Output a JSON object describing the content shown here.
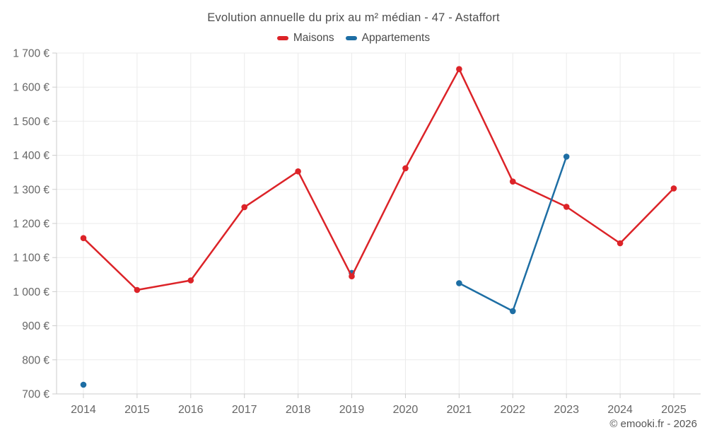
{
  "header": {
    "title": "Evolution annuelle du prix au m² médian - 47 - Astaffort"
  },
  "legend": {
    "items": [
      {
        "label": "Maisons",
        "color": "#dc2328"
      },
      {
        "label": "Appartements",
        "color": "#1d6ea4"
      }
    ]
  },
  "footer": {
    "copyright": "© emooki.fr - 2026"
  },
  "colors": {
    "maisons": "#dc2328",
    "appartements": "#1d6ea4",
    "grid": "#ebebeb",
    "axis": "#cccccc",
    "tick": "#cccccc",
    "axis_label": "#666666",
    "title_text": "#4d4d4d",
    "legend_text": "#4a4a4a",
    "copyright_text": "#555555",
    "background": "#ffffff"
  },
  "chart_data": {
    "type": "line",
    "title": "Evolution annuelle du prix au m² médian - 47 - Astaffort",
    "categories": [
      "2014",
      "2015",
      "2016",
      "2017",
      "2018",
      "2019",
      "2020",
      "2021",
      "2022",
      "2023",
      "2024",
      "2025"
    ],
    "series": [
      {
        "name": "Maisons",
        "color": "#dc2328",
        "values": [
          1157,
          1005,
          1033,
          1248,
          1353,
          1045,
          1362,
          1653,
          1323,
          1249,
          1142,
          1303
        ]
      },
      {
        "name": "Appartements",
        "color": "#1d6ea4",
        "values": [
          727,
          null,
          null,
          null,
          null,
          1055,
          null,
          1025,
          943,
          1396,
          null,
          null
        ]
      }
    ],
    "xlabel": "",
    "ylabel": "",
    "ylim": [
      700,
      1700
    ],
    "ytick_step": 100,
    "ytick_format": "{value} €",
    "grid": true,
    "legend_position": "top",
    "marker": "circle"
  }
}
